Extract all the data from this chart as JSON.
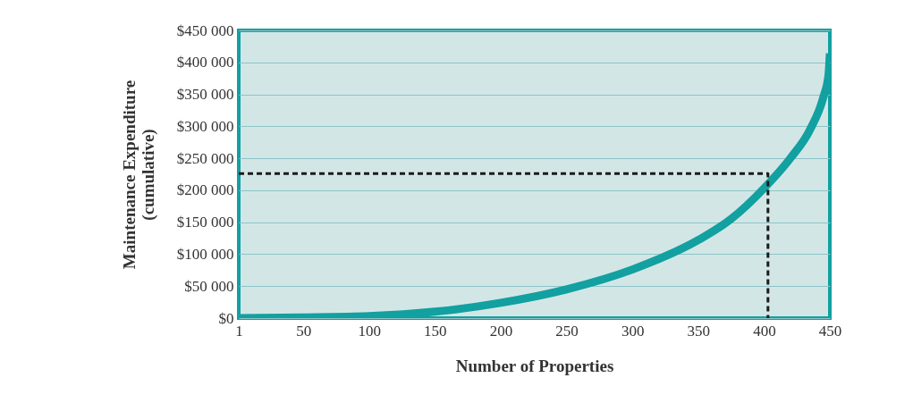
{
  "chart_data": {
    "type": "line",
    "xlabel": "Number of Properties",
    "ylabel": "Maintenance Expenditure\n(cumulative)",
    "xlim": [
      1,
      450
    ],
    "xticks": [
      1,
      50,
      100,
      150,
      200,
      250,
      300,
      350,
      400,
      450
    ],
    "ylim": [
      0,
      450000
    ],
    "yticks": [
      {
        "value": 0,
        "label": "$0"
      },
      {
        "value": 50000,
        "label": "$50 000"
      },
      {
        "value": 100000,
        "label": "$100 000"
      },
      {
        "value": 150000,
        "label": "$150 000"
      },
      {
        "value": 200000,
        "label": "$200 000"
      },
      {
        "value": 250000,
        "label": "$250 000"
      },
      {
        "value": 300000,
        "label": "$300 000"
      },
      {
        "value": 350000,
        "label": "$350 000"
      },
      {
        "value": 400000,
        "label": "$400 000"
      },
      {
        "value": 450000,
        "label": "$450 000"
      }
    ],
    "grid": "y",
    "marker": "none",
    "series": [
      {
        "color": "#12a0a0",
        "line_style": "solid",
        "x": [
          1,
          50,
          100,
          150,
          200,
          250,
          300,
          350,
          375,
          400,
          420,
          435,
          445,
          449,
          450
        ],
        "values": [
          0,
          1000,
          3000,
          10000,
          24000,
          45000,
          76000,
          122000,
          155000,
          203000,
          250000,
          295000,
          345000,
          380000,
          414000
        ]
      },
      {
        "color": "#1a1a1a",
        "line_style": "dashed",
        "x": [
          1,
          403,
          403
        ],
        "values": [
          226000,
          226000,
          0
        ]
      }
    ]
  }
}
